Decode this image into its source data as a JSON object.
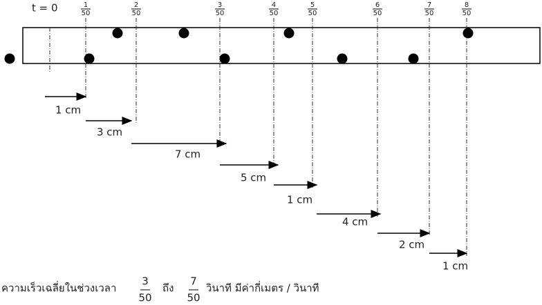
{
  "header": {
    "start_label": "t  =  0",
    "times": [
      {
        "num": "1",
        "den": "50"
      },
      {
        "num": "2",
        "den": "50"
      },
      {
        "num": "3",
        "den": "50"
      },
      {
        "num": "4",
        "den": "50"
      },
      {
        "num": "5",
        "den": "50"
      },
      {
        "num": "6",
        "den": "50"
      },
      {
        "num": "7",
        "den": "50"
      },
      {
        "num": "8",
        "den": "50"
      }
    ]
  },
  "intervals": [
    "1 cm",
    "3 cm",
    "7  cm",
    "5 cm",
    "1 cm",
    "4 cm",
    "2 cm",
    "1 cm"
  ],
  "question": {
    "lead": "ความเร็วเฉลี่ยในช่วงเวลา",
    "from": {
      "num": "3",
      "den": "50"
    },
    "mid": "ถึง",
    "to": {
      "num": "7",
      "den": "50"
    },
    "tail": "วินาที  มีค่ากี่เมตร / วินาที"
  }
}
